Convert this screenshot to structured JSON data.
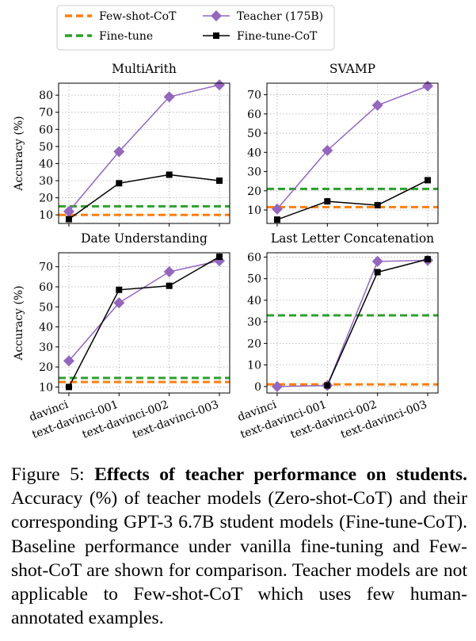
{
  "legend": {
    "items": [
      {
        "label": "Few-shot-CoT",
        "kind": "dashed",
        "color": "#ff7f0e"
      },
      {
        "label": "Teacher (175B)",
        "kind": "diamond",
        "color": "#9467bd"
      },
      {
        "label": "Fine-tune",
        "kind": "dashed",
        "color": "#2ca02c"
      },
      {
        "label": "Fine-tune-CoT",
        "kind": "square",
        "color": "#000000"
      }
    ]
  },
  "chart_data": [
    {
      "type": "line",
      "title": "MultiArith",
      "ylabel": "Accuracy (%)",
      "xlabel": "",
      "categories": [
        "davinci",
        "text-davinci-001",
        "text-davinci-002",
        "text-davinci-003"
      ],
      "ylim": [
        5,
        87
      ],
      "yticks": [
        "10",
        "20",
        "30",
        "40",
        "50",
        "60",
        "70",
        "80"
      ],
      "grid": true,
      "series": [
        {
          "name": "Teacher (175B)",
          "values": [
            12,
            47,
            79,
            86
          ],
          "color": "#9467bd",
          "marker": "diamond"
        },
        {
          "name": "Fine-tune-CoT",
          "values": [
            7.5,
            28.5,
            33.5,
            30
          ],
          "color": "#000000",
          "marker": "square"
        }
      ],
      "baselines": [
        {
          "name": "Fine-tune",
          "value": 15,
          "color": "#2ca02c"
        },
        {
          "name": "Few-shot-CoT",
          "value": 10,
          "color": "#ff7f0e"
        }
      ]
    },
    {
      "type": "line",
      "title": "SVAMP",
      "ylabel": "",
      "xlabel": "",
      "categories": [
        "davinci",
        "text-davinci-001",
        "text-davinci-002",
        "text-davinci-003"
      ],
      "ylim": [
        3,
        76
      ],
      "yticks": [
        "10",
        "20",
        "30",
        "40",
        "50",
        "60",
        "70"
      ],
      "grid": true,
      "series": [
        {
          "name": "Teacher (175B)",
          "values": [
            10.5,
            41,
            64.5,
            74.5
          ],
          "color": "#9467bd",
          "marker": "diamond"
        },
        {
          "name": "Fine-tune-CoT",
          "values": [
            5,
            14.5,
            12.5,
            25.5
          ],
          "color": "#000000",
          "marker": "square"
        }
      ],
      "baselines": [
        {
          "name": "Fine-tune",
          "value": 21,
          "color": "#2ca02c"
        },
        {
          "name": "Few-shot-CoT",
          "value": 11.5,
          "color": "#ff7f0e"
        }
      ]
    },
    {
      "type": "line",
      "title": "Date Understanding",
      "ylabel": "Accuracy (%)",
      "xlabel": "",
      "categories": [
        "davinci",
        "text-davinci-001",
        "text-davinci-002",
        "text-davinci-003"
      ],
      "ylim": [
        7,
        77
      ],
      "yticks": [
        "10",
        "20",
        "30",
        "40",
        "50",
        "60",
        "70"
      ],
      "grid": true,
      "series": [
        {
          "name": "Teacher (175B)",
          "values": [
            23,
            52,
            67.5,
            73
          ],
          "color": "#9467bd",
          "marker": "diamond"
        },
        {
          "name": "Fine-tune-CoT",
          "values": [
            10,
            58.5,
            60.5,
            75
          ],
          "color": "#000000",
          "marker": "square"
        }
      ],
      "baselines": [
        {
          "name": "Fine-tune",
          "value": 14.5,
          "color": "#2ca02c"
        },
        {
          "name": "Few-shot-CoT",
          "value": 12.5,
          "color": "#ff7f0e"
        }
      ]
    },
    {
      "type": "line",
      "title": "Last Letter Concatenation",
      "ylabel": "",
      "xlabel": "",
      "categories": [
        "davinci",
        "text-davinci-001",
        "text-davinci-002",
        "text-davinci-003"
      ],
      "ylim": [
        -3,
        62
      ],
      "yticks": [
        "0",
        "10",
        "20",
        "30",
        "40",
        "50",
        "60"
      ],
      "grid": true,
      "series": [
        {
          "name": "Teacher (175B)",
          "values": [
            0,
            0.5,
            58,
            58.5
          ],
          "color": "#9467bd",
          "marker": "diamond"
        },
        {
          "name": "Fine-tune-CoT",
          "values": [
            null,
            0.5,
            53,
            59
          ],
          "color": "#000000",
          "marker": "square"
        }
      ],
      "baselines": [
        {
          "name": "Fine-tune",
          "value": 33,
          "color": "#2ca02c"
        },
        {
          "name": "Few-shot-CoT",
          "value": 1,
          "color": "#ff7f0e"
        }
      ]
    }
  ],
  "caption": {
    "label": "Figure 5: ",
    "bold": "Effects of teacher performance on students.",
    "body": "Accuracy (%) of teacher models (Zero-shot-CoT) and their corresponding GPT-3 6.7B student models (Fine-tune-CoT). Baseline performance under vanilla fine-tuning and Few-shot-CoT are shown for comparison. Teacher models are not applicable to Few-shot-CoT which uses few human-annotated examples."
  }
}
